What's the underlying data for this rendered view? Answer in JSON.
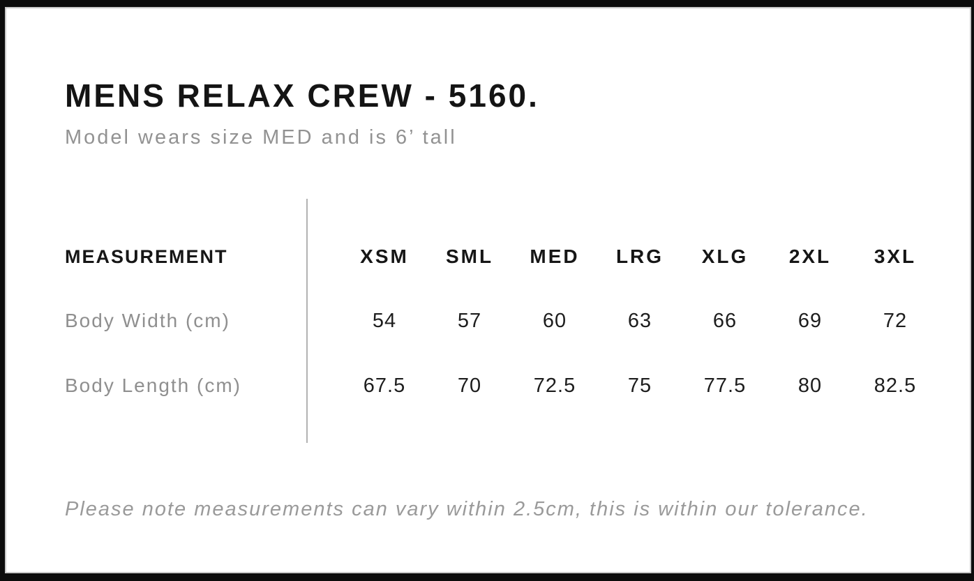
{
  "header": {
    "title": "MENS RELAX CREW - 5160.",
    "subtitle": "Model wears size MED and is 6’ tall"
  },
  "table": {
    "measurement_label": "MEASUREMENT",
    "sizes": [
      "XSM",
      "SML",
      "MED",
      "LRG",
      "XLG",
      "2XL",
      "3XL"
    ],
    "rows": [
      {
        "label": "Body Width (cm)",
        "values": [
          "54",
          "57",
          "60",
          "63",
          "66",
          "69",
          "72"
        ]
      },
      {
        "label": "Body Length (cm)",
        "values": [
          "67.5",
          "70",
          "72.5",
          "75",
          "77.5",
          "80",
          "82.5"
        ]
      }
    ]
  },
  "footer": {
    "note": "Please note measurements can vary within 2.5cm, this is within our tolerance."
  },
  "colors": {
    "text_black": "#141414",
    "text_gray": "#8f8f8f",
    "subtitle_gray": "#929292",
    "footnote_gray": "#9a9a9a",
    "divider_gray": "#b2b2b2",
    "frame_black": "#0c0c0c",
    "page_white": "#ffffff"
  }
}
